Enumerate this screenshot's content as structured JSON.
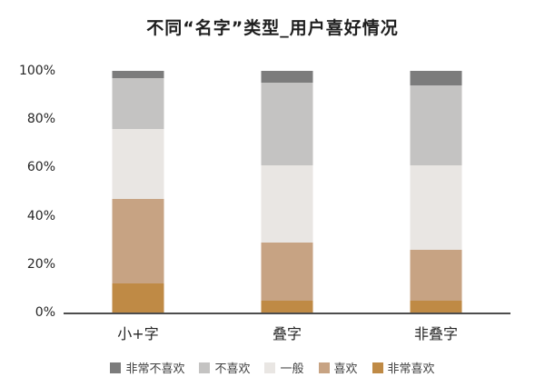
{
  "title": "不同“名字”类型_用户喜好情况",
  "chart_data": {
    "type": "bar",
    "stacked": true,
    "percent": true,
    "title": "不同“名字”类型_用户喜好情况",
    "categories": [
      "小+字",
      "叠字",
      "非叠字"
    ],
    "series": [
      {
        "name": "非常喜欢",
        "color": "#bf8a45",
        "values": [
          12,
          5,
          5
        ]
      },
      {
        "name": "喜欢",
        "color": "#c7a383",
        "values": [
          35,
          24,
          21
        ]
      },
      {
        "name": "一般",
        "color": "#e9e6e3",
        "values": [
          29,
          32,
          35
        ]
      },
      {
        "name": "不喜欢",
        "color": "#c4c3c2",
        "values": [
          21,
          34,
          33
        ]
      },
      {
        "name": "非常不喜欢",
        "color": "#7c7c7c",
        "values": [
          3,
          5,
          6
        ]
      }
    ],
    "legend": [
      "非常不喜欢",
      "不喜欢",
      "一般",
      "喜欢",
      "非常喜欢"
    ],
    "y_ticks": [
      "0%",
      "20%",
      "40%",
      "60%",
      "80%",
      "100%"
    ],
    "ylim": [
      0,
      100
    ],
    "legend_position": "bottom",
    "grid": false
  }
}
